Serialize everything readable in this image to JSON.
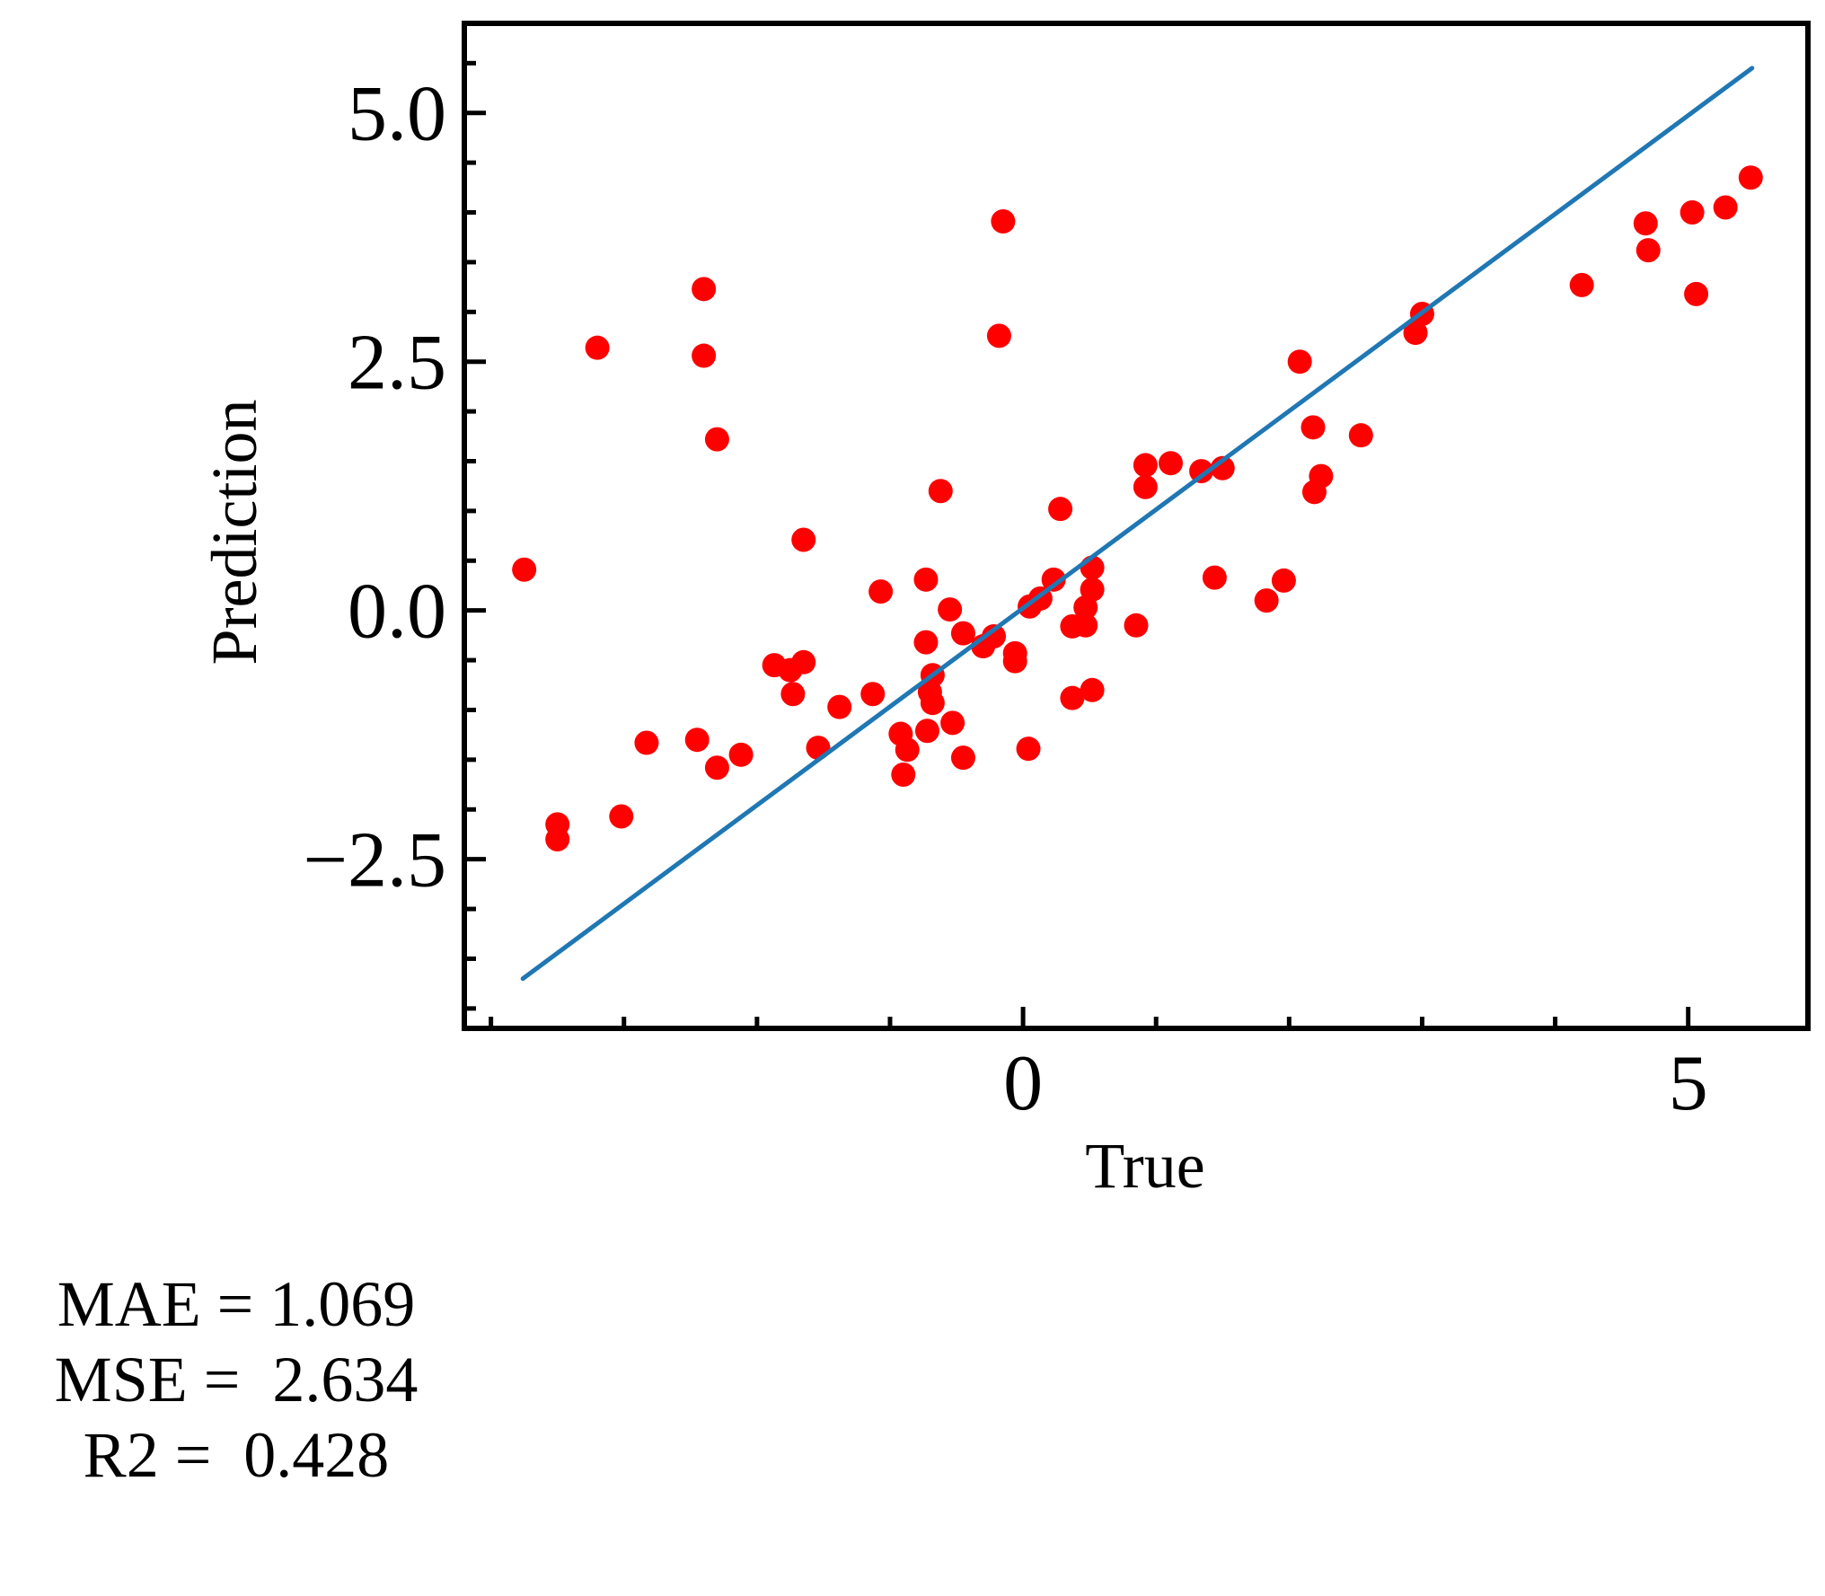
{
  "chart_data": {
    "type": "scatter",
    "xlabel": "True",
    "ylabel": "Prediction",
    "xlim": [
      -4.2,
      5.9
    ],
    "ylim": [
      -4.2,
      5.9
    ],
    "xticks": [
      0,
      5
    ],
    "xtick_labels": [
      "0",
      "5"
    ],
    "x_minor_ticks": [
      -4,
      -3,
      -2,
      -1,
      1,
      2,
      3,
      4,
      5
    ],
    "yticks": [
      -2.5,
      0.0,
      2.5,
      5.0
    ],
    "ytick_labels": [
      "−2.5",
      "0.0",
      "2.5",
      "5.0"
    ],
    "grid": false,
    "points_color": "#ff0000",
    "line_color": "#1f77b4",
    "reference_line": {
      "x": [
        -3.76,
        5.48
      ],
      "y": [
        -3.7,
        5.45
      ]
    },
    "points": [
      {
        "x": -3.75,
        "y": 0.41
      },
      {
        "x": -3.5,
        "y": -2.15
      },
      {
        "x": -3.5,
        "y": -2.3
      },
      {
        "x": -3.2,
        "y": 2.64
      },
      {
        "x": -3.02,
        "y": -2.07
      },
      {
        "x": -2.83,
        "y": -1.33
      },
      {
        "x": -2.45,
        "y": -1.3
      },
      {
        "x": -2.4,
        "y": 3.23
      },
      {
        "x": -2.4,
        "y": 2.56
      },
      {
        "x": -2.3,
        "y": 1.72
      },
      {
        "x": -2.3,
        "y": -1.58
      },
      {
        "x": -2.12,
        "y": -1.45
      },
      {
        "x": -1.87,
        "y": -0.55
      },
      {
        "x": -1.75,
        "y": -0.6
      },
      {
        "x": -1.73,
        "y": -0.84
      },
      {
        "x": -1.65,
        "y": 0.71
      },
      {
        "x": -1.65,
        "y": -0.52
      },
      {
        "x": -1.54,
        "y": -1.38
      },
      {
        "x": -1.38,
        "y": -0.97
      },
      {
        "x": -1.13,
        "y": -0.84
      },
      {
        "x": -1.07,
        "y": 0.19
      },
      {
        "x": -0.92,
        "y": -1.24
      },
      {
        "x": -0.9,
        "y": -1.65
      },
      {
        "x": -0.87,
        "y": -1.4
      },
      {
        "x": -0.73,
        "y": 0.31
      },
      {
        "x": -0.73,
        "y": -0.32
      },
      {
        "x": -0.72,
        "y": -1.21
      },
      {
        "x": -0.7,
        "y": -0.82
      },
      {
        "x": -0.68,
        "y": -0.93
      },
      {
        "x": -0.68,
        "y": -0.65
      },
      {
        "x": -0.62,
        "y": 1.2
      },
      {
        "x": -0.55,
        "y": 0.01
      },
      {
        "x": -0.53,
        "y": -1.13
      },
      {
        "x": -0.45,
        "y": -0.23
      },
      {
        "x": -0.45,
        "y": -1.48
      },
      {
        "x": -0.3,
        "y": -0.36
      },
      {
        "x": -0.22,
        "y": -0.26
      },
      {
        "x": -0.18,
        "y": 2.76
      },
      {
        "x": -0.15,
        "y": 3.91
      },
      {
        "x": -0.06,
        "y": -0.51
      },
      {
        "x": -0.06,
        "y": -0.43
      },
      {
        "x": 0.04,
        "y": -1.39
      },
      {
        "x": 0.05,
        "y": 0.04
      },
      {
        "x": 0.13,
        "y": 0.12
      },
      {
        "x": 0.23,
        "y": 0.31
      },
      {
        "x": 0.28,
        "y": 1.02
      },
      {
        "x": 0.37,
        "y": -0.16
      },
      {
        "x": 0.37,
        "y": -0.88
      },
      {
        "x": 0.47,
        "y": -0.15
      },
      {
        "x": 0.47,
        "y": 0.03
      },
      {
        "x": 0.52,
        "y": 0.43
      },
      {
        "x": 0.52,
        "y": 0.21
      },
      {
        "x": 0.52,
        "y": -0.8
      },
      {
        "x": 0.85,
        "y": -0.15
      },
      {
        "x": 0.92,
        "y": 1.46
      },
      {
        "x": 0.92,
        "y": 1.24
      },
      {
        "x": 1.11,
        "y": 1.48
      },
      {
        "x": 1.34,
        "y": 1.4
      },
      {
        "x": 1.44,
        "y": 0.33
      },
      {
        "x": 1.5,
        "y": 1.43
      },
      {
        "x": 1.83,
        "y": 0.1
      },
      {
        "x": 1.96,
        "y": 0.3
      },
      {
        "x": 2.08,
        "y": 2.5
      },
      {
        "x": 2.18,
        "y": 1.84
      },
      {
        "x": 2.19,
        "y": 1.19
      },
      {
        "x": 2.24,
        "y": 1.35
      },
      {
        "x": 2.54,
        "y": 1.76
      },
      {
        "x": 2.95,
        "y": 2.79
      },
      {
        "x": 3.0,
        "y": 2.98
      },
      {
        "x": 4.2,
        "y": 3.27
      },
      {
        "x": 4.68,
        "y": 3.89
      },
      {
        "x": 4.7,
        "y": 3.62
      },
      {
        "x": 5.03,
        "y": 4.0
      },
      {
        "x": 5.06,
        "y": 3.18
      },
      {
        "x": 5.28,
        "y": 4.05
      },
      {
        "x": 5.47,
        "y": 4.35
      }
    ]
  },
  "metrics": {
    "mae": "MAE = 1.069",
    "mse": "MSE =  2.634",
    "r2": "R2 =  0.428"
  }
}
